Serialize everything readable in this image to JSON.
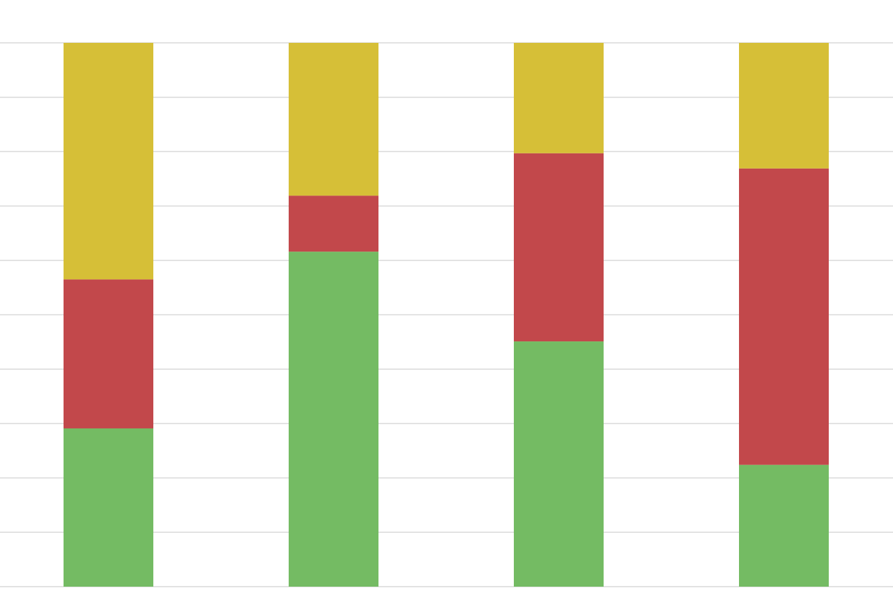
{
  "chart_data": {
    "type": "stacked-bar",
    "categories": [
      null,
      null,
      null,
      null
    ],
    "series": [
      {
        "color": "#74bb63",
        "values": [
          29.1,
          61.6,
          45.1,
          22.4
        ]
      },
      {
        "color": "#c2484b",
        "values": [
          27.4,
          10.3,
          34.6,
          54.5
        ]
      },
      {
        "color": "#d6bf37",
        "values": [
          43.5,
          28.1,
          20.3,
          23.1
        ]
      }
    ],
    "ylim": [
      0,
      100
    ],
    "yticks": [
      0,
      10,
      20,
      30,
      40,
      50,
      60,
      70,
      80,
      90,
      100
    ],
    "grid": true
  }
}
